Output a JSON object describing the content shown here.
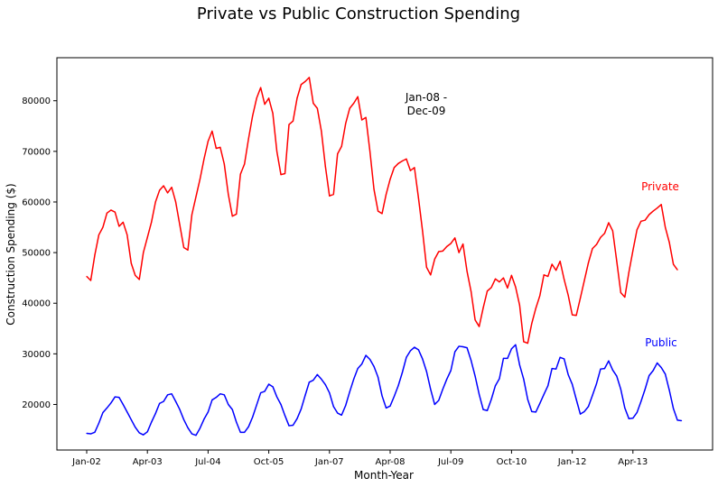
{
  "chart_data": {
    "type": "line",
    "title": "Private vs Public Construction Spending",
    "xlabel": "Month-Year",
    "ylabel": "Construction Spending ($)",
    "x_tick_labels": [
      "Jan-02",
      "Apr-03",
      "Jul-04",
      "Oct-05",
      "Jan-07",
      "Apr-08",
      "Jul-09",
      "Oct-10",
      "Jan-12",
      "Apr-13"
    ],
    "y_ticks": [
      20000,
      30000,
      40000,
      50000,
      60000,
      70000,
      80000
    ],
    "ylim": [
      11000,
      88500
    ],
    "x_start": "Jan-02",
    "x_end": "Jul-14",
    "grid": false,
    "annotation": {
      "text_line1": "Jan-08 -",
      "text_line2": "Dec-09"
    },
    "series": [
      {
        "name": "Private",
        "color": "#ff0000",
        "values": [
          45300,
          44500,
          49500,
          53500,
          55000,
          57800,
          58400,
          58000,
          55200,
          56000,
          53500,
          47900,
          45500,
          44700,
          50000,
          53000,
          56000,
          60000,
          62300,
          63200,
          61800,
          62900,
          60000,
          55500,
          51000,
          50500,
          57500,
          61000,
          64500,
          68500,
          72000,
          74000,
          70600,
          70800,
          67500,
          61500,
          57200,
          57600,
          65500,
          67500,
          72500,
          77000,
          80500,
          82600,
          79300,
          80500,
          77500,
          70000,
          65400,
          65600,
          75300,
          76000,
          80500,
          83200,
          83800,
          84600,
          79500,
          78500,
          74000,
          67000,
          61200,
          61500,
          69500,
          71000,
          75500,
          78500,
          79500,
          80800,
          76200,
          76700,
          70000,
          62500,
          58200,
          57700,
          61500,
          64500,
          66800,
          67600,
          68100,
          68500,
          66200,
          66800,
          60800,
          54300,
          47100,
          45600,
          48700,
          50200,
          50300,
          51200,
          51800,
          52900,
          50000,
          51700,
          46300,
          42300,
          36700,
          35400,
          39100,
          42400,
          43100,
          44800,
          44200,
          45000,
          43000,
          45500,
          43200,
          39600,
          32400,
          32100,
          36000,
          39000,
          41500,
          45600,
          45300,
          47700,
          46500,
          48300,
          44700,
          41600,
          37700,
          37600,
          41000,
          44500,
          48000,
          50800,
          51600,
          53000,
          53800,
          55900,
          54300,
          48300,
          42100,
          41200,
          46100,
          50400,
          54500,
          56200,
          56400,
          57500,
          58200,
          58800,
          59500,
          55000,
          52000,
          47700,
          46600
        ],
        "label": "Private"
      },
      {
        "name": "Public",
        "color": "#0000ff",
        "values": [
          14300,
          14200,
          14500,
          16300,
          18400,
          19300,
          20300,
          21500,
          21400,
          20000,
          18500,
          17000,
          15500,
          14400,
          14000,
          14600,
          16500,
          18200,
          20200,
          20600,
          21900,
          22100,
          20600,
          19000,
          17000,
          15400,
          14200,
          13900,
          15300,
          17100,
          18500,
          20900,
          21400,
          22100,
          21900,
          20000,
          19000,
          16500,
          14500,
          14500,
          15600,
          17500,
          19900,
          22300,
          22600,
          24000,
          23500,
          21500,
          20000,
          17800,
          15800,
          15900,
          17200,
          19100,
          21800,
          24400,
          24800,
          25900,
          25000,
          23900,
          22300,
          19600,
          18300,
          17900,
          19800,
          22500,
          25000,
          27100,
          28000,
          29700,
          28900,
          27500,
          25400,
          21700,
          19300,
          19700,
          21600,
          23700,
          26300,
          29300,
          30600,
          31300,
          30800,
          29000,
          26500,
          23000,
          20000,
          20800,
          23000,
          25000,
          26700,
          30400,
          31500,
          31400,
          31200,
          28700,
          25600,
          22000,
          19000,
          18800,
          21000,
          23700,
          25100,
          29100,
          29100,
          31000,
          31800,
          27800,
          25000,
          21000,
          18600,
          18500,
          20200,
          22000,
          23700,
          27100,
          27000,
          29300,
          29000,
          25900,
          24000,
          21000,
          18100,
          18600,
          19600,
          21800,
          24100,
          27000,
          27100,
          28600,
          26800,
          25600,
          23000,
          19300,
          17200,
          17300,
          18400,
          20600,
          23000,
          25700,
          26700,
          28200,
          27300,
          26000,
          22800,
          19200,
          16900,
          16800
        ],
        "label": "Public"
      }
    ]
  }
}
